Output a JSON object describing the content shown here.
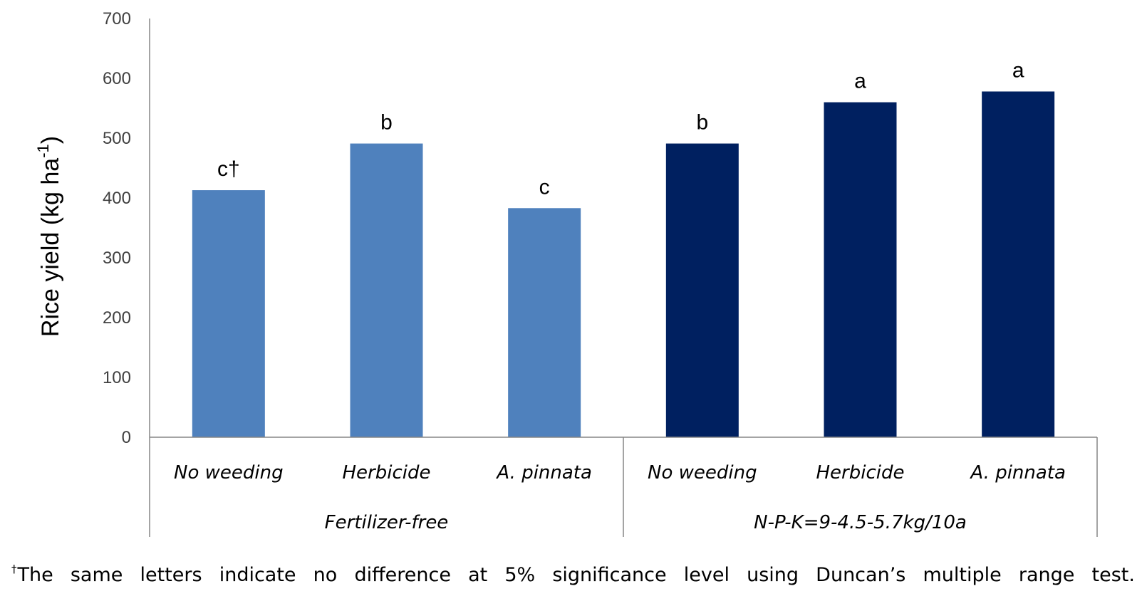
{
  "chart_data": {
    "type": "bar",
    "ylabel": "Rice yield (kg ha",
    "ylabel_sup": "-1",
    "ylabel_close": ")",
    "ylim": [
      0,
      700
    ],
    "yticks": [
      "0",
      "100",
      "200",
      "300",
      "400",
      "500",
      "600",
      "700"
    ],
    "grid": false,
    "categories": [
      "No weeding",
      "Herbicide",
      "A. pinnata",
      "No weeding",
      "Herbicide",
      "A. pinnata"
    ],
    "groups": [
      "Fertilizer-free",
      "N-P-K=9-4.5-5.7kg/10a"
    ],
    "values": [
      413,
      491,
      383,
      491,
      560,
      578
    ],
    "labels": [
      "c†",
      "b",
      "c",
      "b",
      "a",
      "a"
    ],
    "colors": [
      "#4f81bd",
      "#4f81bd",
      "#4f81bd",
      "#002060",
      "#002060",
      "#002060"
    ]
  },
  "footnote": {
    "marker": "†",
    "text": "The same letters indicate no difference at 5% significance level using Duncan’s multiple range test."
  }
}
